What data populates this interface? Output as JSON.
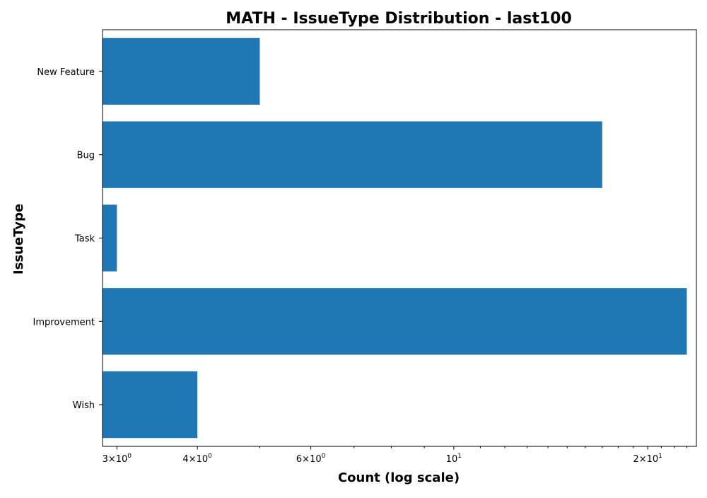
{
  "chart_data": {
    "type": "bar",
    "orientation": "horizontal",
    "title": "MATH - IssueType Distribution - last100",
    "xlabel": "Count (log scale)",
    "ylabel": "IssueType",
    "xscale": "log",
    "xlim": [
      2.85,
      23.8
    ],
    "categories": [
      "New Feature",
      "Bug",
      "Task",
      "Improvement",
      "Wish"
    ],
    "values": [
      5,
      17,
      3,
      23,
      4
    ],
    "x_ticks": [
      {
        "value": 3,
        "mantissa": "3",
        "base": "10",
        "exponent": "0"
      },
      {
        "value": 4,
        "mantissa": "4",
        "base": "10",
        "exponent": "0"
      },
      {
        "value": 6,
        "mantissa": "6",
        "base": "10",
        "exponent": "0"
      },
      {
        "value": 10,
        "mantissa": "",
        "base": "10",
        "exponent": "1"
      },
      {
        "value": 20,
        "mantissa": "2",
        "base": "10",
        "exponent": "1"
      }
    ],
    "bar_color": "#1f77b4",
    "grid": false,
    "legend": false
  }
}
